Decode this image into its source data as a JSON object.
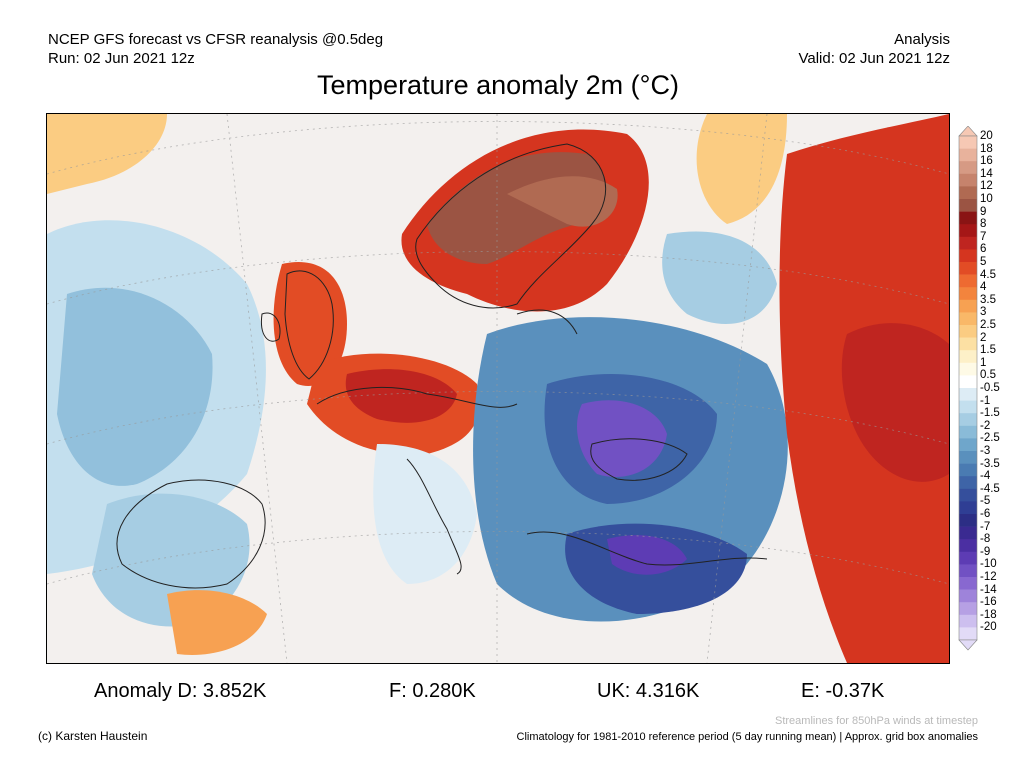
{
  "header": {
    "line1_left": "NCEP GFS forecast vs CFSR reanalysis @0.5deg",
    "line2_left": "Run: 02 Jun 2021 12z",
    "line1_right": "Analysis",
    "line2_right": "Valid: 02 Jun 2021 12z"
  },
  "title": "Temperature anomaly 2m (°C)",
  "legend": {
    "labels": [
      "20",
      "18",
      "16",
      "14",
      "12",
      "10",
      "9",
      "8",
      "7",
      "6",
      "5",
      "4.5",
      "4",
      "3.5",
      "3",
      "2.5",
      "2",
      "1.5",
      "1",
      "0.5",
      "-0.5",
      "-1",
      "-1.5",
      "-2",
      "-2.5",
      "-3",
      "-3.5",
      "-4",
      "-4.5",
      "-5",
      "-6",
      "-7",
      "-8",
      "-9",
      "-10",
      "-12",
      "-14",
      "-16",
      "-18",
      "-20"
    ],
    "colors": [
      "#f6c8b4",
      "#e8b29c",
      "#d69a84",
      "#c6836c",
      "#b06a52",
      "#9b5443",
      "#8a1414",
      "#a51717",
      "#bf2520",
      "#d5351f",
      "#e24c25",
      "#ee6a31",
      "#f3843d",
      "#f7a152",
      "#f9b868",
      "#fbcc82",
      "#fce0a3",
      "#fdf0c8",
      "#fefae6",
      "#ffffff",
      "#ddecf5",
      "#c3dfee",
      "#a6cde3",
      "#8abbd8",
      "#6fa6cb",
      "#5a90bd",
      "#4a7bb2",
      "#3e64a7",
      "#354f9c",
      "#2f3e94",
      "#2c2e85",
      "#3a2a91",
      "#4b2fa2",
      "#5d3cb4",
      "#7151c3",
      "#8868d0",
      "#9e83da",
      "#b6a0e4",
      "#cdbfef",
      "#e2dbf7"
    ]
  },
  "stats": {
    "anomaly_d": "Anomaly D: 3.852K",
    "anomaly_f": "F: 0.280K",
    "anomaly_uk": "UK: 4.316K",
    "anomaly_e": "E: -0.37K"
  },
  "footer": {
    "credit": "(c) Karsten Haustein",
    "streamlines_note": "Streamlines for 850hPa winds at timestep",
    "climatology_note": "Climatology for 1981-2010 reference period (5 day running mean) | Approx. grid box anomalies"
  }
}
